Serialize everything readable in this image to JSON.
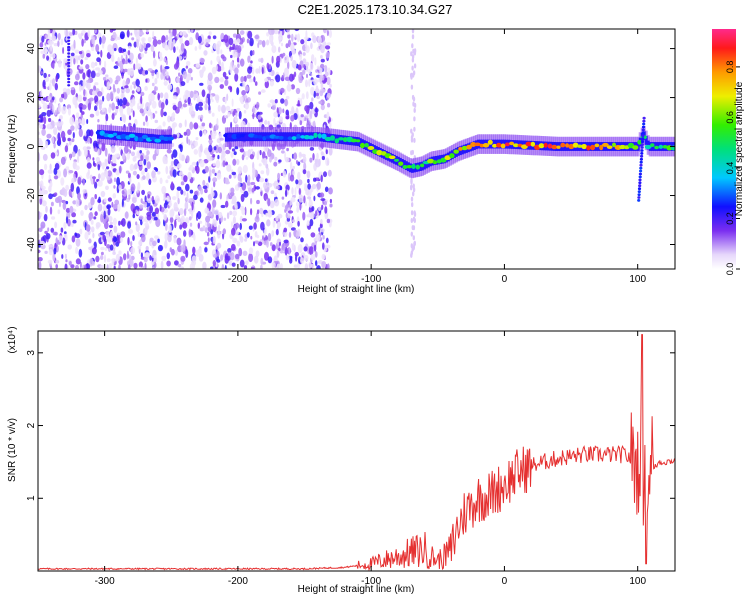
{
  "title": "C2E1.2025.173.10.34.G27",
  "chart_data": [
    {
      "type": "heatmap",
      "xlabel": "Height of straight line (km)",
      "ylabel": "Frequency (Hz)",
      "xlim": [
        -350,
        128
      ],
      "ylim": [
        -50,
        48
      ],
      "xticks": [
        -300,
        -200,
        -100,
        0,
        100
      ],
      "yticks": [
        -40,
        -20,
        0,
        20,
        40
      ],
      "colorbar": {
        "label": "Normalized spectral amplitude",
        "range": [
          0.0,
          0.95
        ],
        "ticks": [
          0.0,
          0.2,
          0.4,
          0.6,
          0.8
        ],
        "tick_labels": [
          "0.0",
          "0.2",
          "0.4",
          "0.6",
          "0.8"
        ]
      },
      "ridge": {
        "description_values": "dominant frequency track (Hz) vs height (km)",
        "x": [
          -305,
          -280,
          -260,
          -250,
          -200,
          -170,
          -140,
          -125,
          -110,
          -95,
          -80,
          -70,
          -62,
          -55,
          -45,
          -35,
          -20,
          0,
          40,
          80,
          100,
          104,
          108,
          128
        ],
        "y": [
          5,
          4,
          3,
          3,
          4,
          4,
          4,
          3,
          2,
          -2,
          -6,
          -9,
          -8,
          -6,
          -5,
          -2,
          1,
          1,
          0,
          0,
          0,
          5,
          0,
          0
        ],
        "amplitude": [
          0.35,
          0.4,
          0.4,
          0.35,
          0.3,
          0.35,
          0.45,
          0.55,
          0.65,
          0.75,
          0.7,
          0.55,
          0.6,
          0.65,
          0.7,
          0.8,
          0.85,
          0.9,
          0.9,
          0.85,
          0.7,
          0.5,
          0.55,
          0.6
        ]
      },
      "noise_region_x": [
        -350,
        -130
      ],
      "grid": false
    },
    {
      "type": "line",
      "xlabel": "Height of straight line (km)",
      "ylabel": "SNR (10 * v/v)",
      "y_multiplier": "(x10⁴)",
      "xlim": [
        -350,
        128
      ],
      "ylim": [
        0,
        3.3
      ],
      "xticks": [
        -300,
        -200,
        -100,
        0,
        100
      ],
      "yticks": [
        1,
        2,
        3
      ],
      "color": "#e53030",
      "series": [
        {
          "x": [
            -350,
            -250,
            -150,
            -120,
            -100,
            -90,
            -80,
            -70,
            -60,
            -55,
            -50,
            -45,
            -40,
            -35,
            -30,
            -25,
            -20,
            -10,
            0,
            10,
            20,
            30,
            40,
            60,
            80,
            90,
            95,
            98,
            100,
            102,
            104,
            106,
            108,
            110,
            112,
            116,
            120,
            128
          ],
          "y": [
            0.03,
            0.03,
            0.03,
            0.05,
            0.1,
            0.15,
            0.2,
            0.25,
            0.3,
            0.2,
            0.15,
            0.2,
            0.3,
            0.6,
            0.8,
            0.9,
            1.0,
            1.05,
            1.2,
            1.35,
            1.45,
            1.5,
            1.55,
            1.6,
            1.6,
            1.6,
            1.55,
            1.5,
            1.4,
            1.7,
            1.1,
            2.3,
            0.9,
            1.9,
            1.4,
            1.5,
            1.5,
            1.52
          ]
        }
      ],
      "grid": false
    }
  ]
}
